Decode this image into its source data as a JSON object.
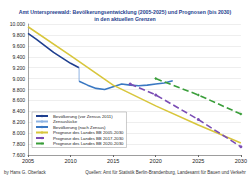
{
  "chart_data": {
    "type": "line",
    "title": "Amt Unterspreewald: Bevölkerungsentwicklung (2005-2025) und Prognosen (bis 2030)\nin den aktuellen Grenzen",
    "annotations": [
      "by Hans G. Oberlack",
      "Quellen: Amt für Statistik Berlin-Brandenburg, Landesamt für Bauen und Verkehr"
    ],
    "xlim": [
      2005,
      2030
    ],
    "xticks": [
      2005,
      2010,
      2015,
      2020,
      2025,
      2030
    ],
    "ylim": [
      7600,
      10000
    ],
    "yticks": [
      {
        "value": 7600,
        "label": "7.600"
      },
      {
        "value": 7800,
        "label": "7.800"
      },
      {
        "value": 8000,
        "label": "8.000"
      },
      {
        "value": 8200,
        "label": "8.200"
      },
      {
        "value": 8400,
        "label": "8.400"
      },
      {
        "value": 8600,
        "label": "8.600"
      },
      {
        "value": 8800,
        "label": "8.800"
      },
      {
        "value": 9000,
        "label": "9.000"
      },
      {
        "value": 9200,
        "label": "9.200"
      },
      {
        "value": 9400,
        "label": "9.400"
      },
      {
        "value": 9600,
        "label": "9.600"
      },
      {
        "value": 9800,
        "label": "9.800"
      },
      {
        "value": 10000,
        "label": "10.000"
      }
    ],
    "grid": true,
    "legend": "lower left",
    "series": [
      {
        "name": "Bevölkerung (vor Zensus 2011)",
        "color": "#1f3f8f",
        "marker": "none",
        "line_style": "solid",
        "x": [
          2005,
          2006,
          2007,
          2008,
          2009,
          2010,
          2011
        ],
        "values": [
          9830,
          9720,
          9600,
          9480,
          9380,
          9280,
          9200
        ]
      },
      {
        "name": "Zensuslücke",
        "color": "#8fb4e3",
        "marker": "none",
        "line_style": "solid",
        "x": [
          2011,
          2011
        ],
        "values": [
          9200,
          8950
        ]
      },
      {
        "name": "Bevölkerung (nach Zensus)",
        "color": "#3a78c2",
        "marker": "none",
        "line_style": "solid",
        "x": [
          2011,
          2012,
          2013,
          2014,
          2015,
          2016,
          2017,
          2018,
          2019,
          2020,
          2021,
          2022
        ],
        "values": [
          8950,
          8880,
          8820,
          8800,
          8850,
          8900,
          8880,
          8870,
          8880,
          8900,
          8920,
          8960
        ]
      },
      {
        "name": "Prognose des Landes BB 2005-2030",
        "color": "#d8c63c",
        "marker": "none",
        "line_style": "solid",
        "x": [
          2005,
          2010,
          2015,
          2020,
          2025,
          2030
        ],
        "values": [
          9950,
          9420,
          8880,
          8500,
          8150,
          7820
        ]
      },
      {
        "name": "Prognose des Landes BB 2017-2030",
        "color": "#7a4db5",
        "marker": "circle",
        "line_style": "dashed",
        "x": [
          2017,
          2020,
          2025,
          2030
        ],
        "values": [
          8900,
          8700,
          8250,
          7750
        ]
      },
      {
        "name": "Prognose des Landes BB 2020-2030",
        "color": "#3a9e3a",
        "marker": "diamond",
        "line_style": "dashed",
        "x": [
          2020,
          2025,
          2030
        ],
        "values": [
          9000,
          8700,
          8350
        ]
      }
    ]
  }
}
